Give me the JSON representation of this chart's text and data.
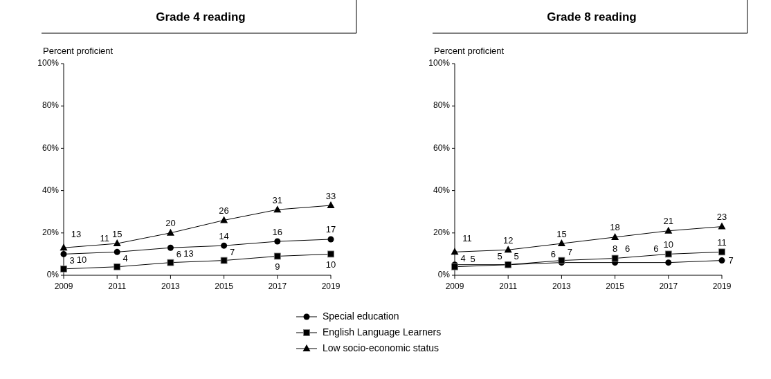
{
  "chart_data": [
    {
      "type": "line",
      "title": "Grade 4 reading",
      "ylabel": "Percent proficient",
      "x": [
        2009,
        2011,
        2013,
        2015,
        2017,
        2019
      ],
      "xlim": [
        2009,
        2019
      ],
      "xticks": [
        2009,
        2011,
        2013,
        2015,
        2017,
        2019
      ],
      "ylim": [
        0,
        100
      ],
      "yticks": [
        {
          "value": 0,
          "label": "0%"
        },
        {
          "value": 20,
          "label": "20%"
        },
        {
          "value": 40,
          "label": "40%"
        },
        {
          "value": 60,
          "label": "60%"
        },
        {
          "value": 80,
          "label": "80%"
        },
        {
          "value": 100,
          "label": "100%"
        }
      ],
      "data_labels": true,
      "legend": "bottom",
      "series": [
        {
          "name": "Special education",
          "color": "#000000",
          "marker": "circle",
          "values": [
            10,
            11,
            13,
            14,
            16,
            17
          ]
        },
        {
          "name": "English Language Learners",
          "color": "#000000",
          "marker": "square",
          "values": [
            3,
            4,
            6,
            7,
            9,
            10
          ]
        },
        {
          "name": "Low socio-economic status",
          "color": "#000000",
          "marker": "triangle",
          "values": [
            13,
            15,
            20,
            26,
            31,
            33
          ]
        }
      ]
    },
    {
      "type": "line",
      "title": "Grade 8 reading",
      "ylabel": "Percent proficient",
      "x": [
        2009,
        2011,
        2013,
        2015,
        2017,
        2019
      ],
      "xlim": [
        2009,
        2019
      ],
      "xticks": [
        2009,
        2011,
        2013,
        2015,
        2017,
        2019
      ],
      "ylim": [
        0,
        100
      ],
      "yticks": [
        {
          "value": 0,
          "label": "0%"
        },
        {
          "value": 20,
          "label": "20%"
        },
        {
          "value": 40,
          "label": "40%"
        },
        {
          "value": 60,
          "label": "60%"
        },
        {
          "value": 80,
          "label": "80%"
        },
        {
          "value": 100,
          "label": "100%"
        }
      ],
      "data_labels": true,
      "series": [
        {
          "color": "#000000",
          "marker": "circle",
          "values": [
            5,
            5,
            6,
            6,
            6,
            7
          ]
        },
        {
          "color": "#000000",
          "marker": "square",
          "values": [
            4,
            5,
            7,
            8,
            10,
            11
          ]
        },
        {
          "color": "#000000",
          "marker": "triangle",
          "values": [
            11,
            12,
            15,
            18,
            21,
            23
          ]
        }
      ]
    }
  ]
}
